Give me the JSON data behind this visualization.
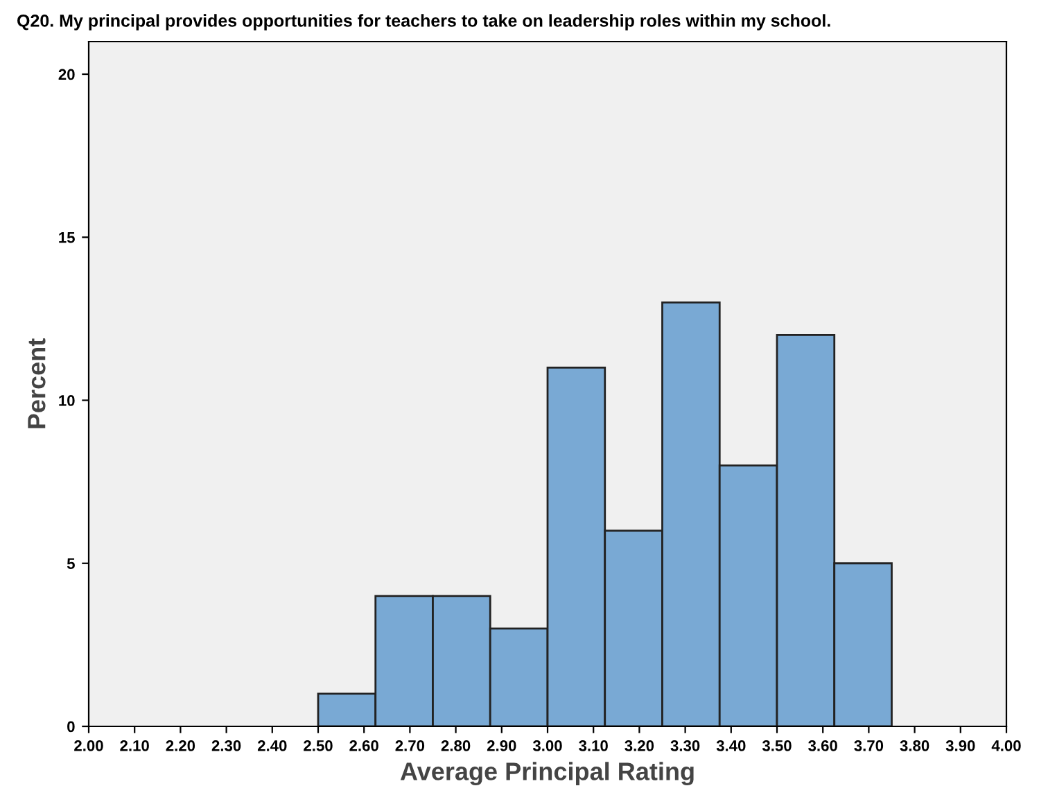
{
  "chart_data": {
    "type": "histogram",
    "title": "Q20. My principal provides opportunities for teachers to take on leadership roles within my school.",
    "xlabel": "Average Principal Rating",
    "ylabel": "Percent",
    "bins": [
      2.5,
      2.625,
      2.75,
      2.875,
      3.0,
      3.125,
      3.25,
      3.375,
      3.5,
      3.625,
      3.75
    ],
    "values": [
      1,
      4,
      4,
      3,
      11,
      6,
      13,
      8,
      12,
      5
    ],
    "color": "#79a9d4",
    "xlim": [
      2.0,
      4.0
    ],
    "xticks": [
      {
        "value": 2.0,
        "label": "2.00"
      },
      {
        "value": 2.1,
        "label": "2.10"
      },
      {
        "value": 2.2,
        "label": "2.20"
      },
      {
        "value": 2.3,
        "label": "2.30"
      },
      {
        "value": 2.4,
        "label": "2.40"
      },
      {
        "value": 2.5,
        "label": "2.50"
      },
      {
        "value": 2.6,
        "label": "2.60"
      },
      {
        "value": 2.7,
        "label": "2.70"
      },
      {
        "value": 2.8,
        "label": "2.80"
      },
      {
        "value": 2.9,
        "label": "2.90"
      },
      {
        "value": 3.0,
        "label": "3.00"
      },
      {
        "value": 3.1,
        "label": "3.10"
      },
      {
        "value": 3.2,
        "label": "3.20"
      },
      {
        "value": 3.3,
        "label": "3.30"
      },
      {
        "value": 3.4,
        "label": "3.40"
      },
      {
        "value": 3.5,
        "label": "3.50"
      },
      {
        "value": 3.6,
        "label": "3.60"
      },
      {
        "value": 3.7,
        "label": "3.70"
      },
      {
        "value": 3.8,
        "label": "3.80"
      },
      {
        "value": 3.9,
        "label": "3.90"
      },
      {
        "value": 4.0,
        "label": "4.00"
      }
    ],
    "ylim": [
      0,
      21
    ],
    "yticks": [
      0,
      5,
      10,
      15,
      20
    ],
    "grid": false
  }
}
